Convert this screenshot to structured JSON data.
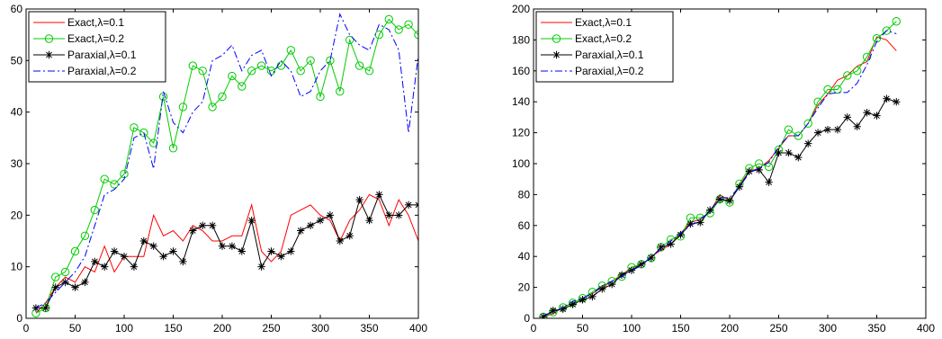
{
  "chart_data": [
    {
      "type": "line",
      "title": "",
      "xlabel": "",
      "ylabel": "",
      "xlim": [
        0,
        400
      ],
      "ylim": [
        0,
        60
      ],
      "xticks": [
        0,
        50,
        100,
        150,
        200,
        250,
        300,
        350,
        400
      ],
      "yticks": [
        0,
        10,
        20,
        30,
        40,
        50,
        60
      ],
      "grid": false,
      "legend_position": "top-left",
      "series": [
        {
          "name": "Exact,λ=0.1",
          "color": "#ff0000",
          "style": "solid",
          "marker": "none",
          "x": [
            10,
            20,
            30,
            40,
            50,
            60,
            70,
            80,
            90,
            100,
            110,
            120,
            130,
            140,
            150,
            160,
            170,
            180,
            190,
            200,
            210,
            220,
            230,
            240,
            250,
            260,
            270,
            280,
            290,
            300,
            310,
            320,
            330,
            340,
            350,
            360,
            370,
            380,
            390,
            400
          ],
          "values": [
            1,
            3,
            6,
            8,
            7,
            10,
            9,
            14,
            9,
            12,
            12,
            12,
            20,
            16,
            17,
            15,
            18,
            17,
            15,
            15,
            16,
            16,
            22,
            13,
            11,
            13,
            20,
            21,
            22,
            20,
            19,
            15,
            19,
            21,
            24,
            23,
            18,
            23,
            20,
            15
          ]
        },
        {
          "name": "Exact,λ=0.2",
          "color": "#00cc00",
          "style": "solid",
          "marker": "circle",
          "x": [
            10,
            20,
            30,
            40,
            50,
            60,
            70,
            80,
            90,
            100,
            110,
            120,
            130,
            140,
            150,
            160,
            170,
            180,
            190,
            200,
            210,
            220,
            230,
            240,
            250,
            260,
            270,
            280,
            290,
            300,
            310,
            320,
            330,
            340,
            350,
            360,
            370,
            380,
            390,
            400
          ],
          "values": [
            1,
            2,
            8,
            9,
            13,
            16,
            21,
            27,
            26,
            28,
            37,
            36,
            34,
            43,
            33,
            41,
            49,
            48,
            41,
            43,
            47,
            45,
            48,
            49,
            48,
            49,
            52,
            48,
            50,
            43,
            50,
            44,
            54,
            49,
            48,
            55,
            58,
            56,
            57,
            55
          ]
        },
        {
          "name": "Paraxial,λ=0.1",
          "color": "#000000",
          "style": "solid",
          "marker": "star",
          "x": [
            10,
            20,
            30,
            40,
            50,
            60,
            70,
            80,
            90,
            100,
            110,
            120,
            130,
            140,
            150,
            160,
            170,
            180,
            190,
            200,
            210,
            220,
            230,
            240,
            250,
            260,
            270,
            280,
            290,
            300,
            310,
            320,
            330,
            340,
            350,
            360,
            370,
            380,
            390,
            400
          ],
          "values": [
            2,
            2,
            6,
            7,
            6,
            7,
            11,
            10,
            13,
            12,
            10,
            15,
            14,
            12,
            13,
            11,
            17,
            18,
            18,
            14,
            14,
            13,
            19,
            10,
            13,
            12,
            13,
            17,
            18,
            19,
            20,
            15,
            16,
            23,
            19,
            24,
            20,
            20,
            22,
            22
          ]
        },
        {
          "name": "Paraxial,λ=0.2",
          "color": "#0000ff",
          "style": "dashdot",
          "marker": "none",
          "x": [
            10,
            20,
            30,
            40,
            50,
            60,
            70,
            80,
            90,
            100,
            110,
            120,
            130,
            140,
            150,
            160,
            170,
            180,
            190,
            200,
            210,
            220,
            230,
            240,
            250,
            260,
            270,
            280,
            290,
            300,
            310,
            320,
            330,
            340,
            350,
            360,
            370,
            380,
            390,
            400
          ],
          "values": [
            2,
            3,
            5,
            7,
            9,
            12,
            18,
            24,
            25,
            27,
            35,
            36,
            29,
            44,
            38,
            36,
            40,
            42,
            50,
            51,
            53,
            48,
            51,
            52,
            47,
            50,
            48,
            43,
            44,
            48,
            50,
            59,
            55,
            53,
            52,
            57,
            56,
            52,
            36,
            51
          ]
        }
      ]
    },
    {
      "type": "line",
      "title": "",
      "xlabel": "",
      "ylabel": "",
      "xlim": [
        0,
        400
      ],
      "ylim": [
        0,
        200
      ],
      "xticks": [
        0,
        50,
        100,
        150,
        200,
        250,
        300,
        350,
        400
      ],
      "yticks": [
        0,
        20,
        40,
        60,
        80,
        100,
        120,
        140,
        160,
        180,
        200
      ],
      "grid": false,
      "legend_position": "top-left",
      "series": [
        {
          "name": "Exact,λ=0.1",
          "color": "#ff0000",
          "style": "solid",
          "marker": "none",
          "x": [
            10,
            20,
            30,
            40,
            50,
            60,
            70,
            80,
            90,
            100,
            110,
            120,
            130,
            140,
            150,
            160,
            170,
            180,
            190,
            200,
            210,
            220,
            230,
            240,
            250,
            260,
            270,
            280,
            290,
            300,
            310,
            320,
            330,
            340,
            350,
            360,
            370
          ],
          "values": [
            1,
            3,
            7,
            10,
            13,
            16,
            20,
            24,
            28,
            33,
            34,
            40,
            44,
            48,
            55,
            62,
            64,
            69,
            80,
            76,
            86,
            95,
            97,
            102,
            110,
            118,
            118,
            126,
            138,
            145,
            154,
            157,
            163,
            166,
            182,
            180,
            173
          ]
        },
        {
          "name": "Exact,λ=0.2",
          "color": "#00cc00",
          "style": "solid",
          "marker": "circle",
          "x": [
            10,
            20,
            30,
            40,
            50,
            60,
            70,
            80,
            90,
            100,
            110,
            120,
            130,
            140,
            150,
            160,
            170,
            180,
            190,
            200,
            210,
            220,
            230,
            240,
            250,
            260,
            270,
            280,
            290,
            300,
            310,
            320,
            330,
            340,
            350,
            360,
            370
          ],
          "values": [
            1,
            4,
            7,
            10,
            13,
            17,
            21,
            24,
            27,
            33,
            35,
            39,
            46,
            51,
            53,
            65,
            65,
            68,
            77,
            75,
            87,
            97,
            100,
            98,
            109,
            122,
            118,
            126,
            140,
            148,
            148,
            157,
            160,
            169,
            181,
            186,
            192
          ]
        },
        {
          "name": "Paraxial,λ=0.1",
          "color": "#000000",
          "style": "solid",
          "marker": "star",
          "x": [
            10,
            20,
            30,
            40,
            50,
            60,
            70,
            80,
            90,
            100,
            110,
            120,
            130,
            140,
            150,
            160,
            170,
            180,
            190,
            200,
            210,
            220,
            230,
            240,
            250,
            260,
            270,
            280,
            290,
            300,
            310,
            320,
            330,
            340,
            350,
            360,
            370
          ],
          "values": [
            1,
            5,
            6,
            9,
            12,
            14,
            19,
            22,
            28,
            31,
            35,
            39,
            46,
            48,
            54,
            61,
            62,
            70,
            77,
            76,
            85,
            95,
            96,
            88,
            107,
            107,
            104,
            113,
            120,
            122,
            122,
            130,
            124,
            133,
            131,
            142,
            140
          ]
        },
        {
          "name": "Paraxial,λ=0.2",
          "color": "#0000ff",
          "style": "dashdot",
          "marker": "none",
          "x": [
            10,
            20,
            30,
            40,
            50,
            60,
            70,
            80,
            90,
            100,
            110,
            120,
            130,
            140,
            150,
            160,
            170,
            180,
            190,
            200,
            210,
            220,
            230,
            240,
            250,
            260,
            270,
            280,
            290,
            300,
            310,
            320,
            330,
            340,
            350,
            360,
            370
          ],
          "values": [
            2,
            4,
            7,
            11,
            13,
            16,
            21,
            24,
            27,
            31,
            34,
            40,
            45,
            50,
            55,
            60,
            64,
            69,
            78,
            78,
            85,
            94,
            97,
            101,
            111,
            118,
            118,
            126,
            136,
            145,
            146,
            146,
            152,
            164,
            179,
            186,
            184
          ]
        }
      ]
    }
  ]
}
